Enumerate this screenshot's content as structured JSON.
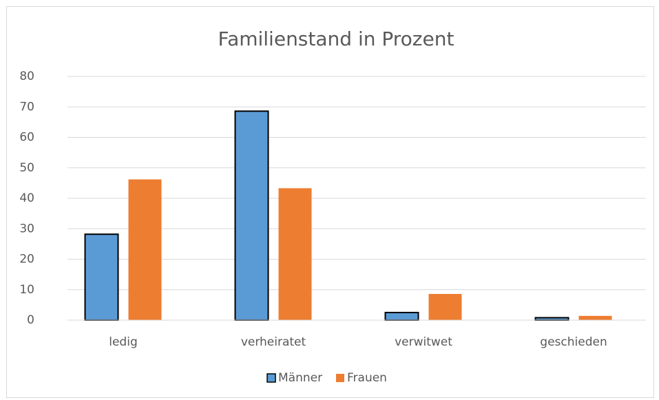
{
  "chart_data": {
    "type": "bar",
    "title": "Familienstand in Prozent",
    "categories": [
      "ledig",
      "verheiratet",
      "verwitwet",
      "geschieden"
    ],
    "series": [
      {
        "name": "Männer",
        "color": "#5b9bd5",
        "edgecolor": "#000000",
        "values": [
          28.2,
          68.6,
          2.5,
          0.8
        ]
      },
      {
        "name": "Frauen",
        "color": "#ed7d31",
        "values": [
          46.2,
          43.3,
          8.6,
          1.4
        ]
      }
    ],
    "ylim": [
      0,
      80
    ],
    "yticks": [
      0,
      10,
      20,
      30,
      40,
      50,
      60,
      70,
      80
    ],
    "grid": true,
    "legend": "bottom"
  }
}
